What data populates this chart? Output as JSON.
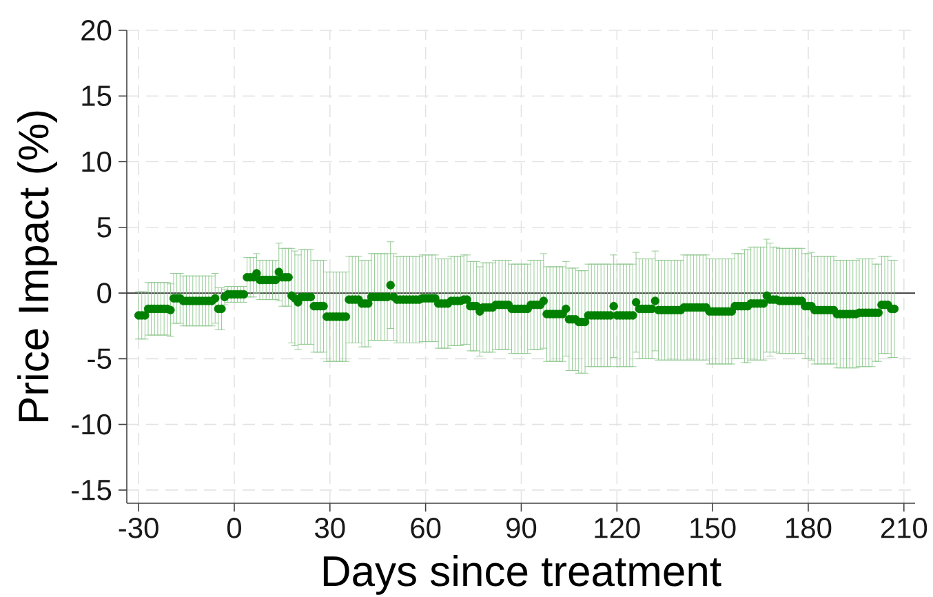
{
  "chart_data": {
    "type": "scatter",
    "xlabel": "Days since treatment",
    "ylabel": "Price Impact (%)",
    "xlim": [
      -33.7,
      213.5
    ],
    "ylim": [
      -16,
      20
    ],
    "xticks": [
      -30,
      0,
      30,
      60,
      90,
      120,
      150,
      180,
      210
    ],
    "yticks": [
      -15,
      -10,
      -5,
      0,
      5,
      10,
      15,
      20
    ],
    "grid": true,
    "marker": "circle",
    "ref_lines": [
      {
        "axis": "y",
        "value": 0,
        "color": "#333333"
      }
    ],
    "x": [
      -30,
      -29,
      -28,
      -27,
      -26,
      -25,
      -24,
      -23,
      -22,
      -21,
      -20,
      -19,
      -18,
      -17,
      -16,
      -15,
      -14,
      -13,
      -12,
      -11,
      -10,
      -9,
      -8,
      -7,
      -6,
      -5,
      -4,
      -3,
      -2,
      -1,
      0,
      1,
      2,
      3,
      4,
      5,
      6,
      7,
      8,
      9,
      10,
      11,
      12,
      13,
      14,
      15,
      16,
      17,
      18,
      19,
      20,
      21,
      22,
      23,
      24,
      25,
      26,
      27,
      28,
      29,
      30,
      31,
      32,
      33,
      34,
      35,
      36,
      37,
      38,
      39,
      40,
      41,
      42,
      43,
      44,
      45,
      46,
      47,
      48,
      49,
      50,
      51,
      52,
      53,
      54,
      55,
      56,
      57,
      58,
      59,
      60,
      61,
      62,
      63,
      64,
      65,
      66,
      67,
      68,
      69,
      70,
      71,
      72,
      73,
      74,
      75,
      76,
      77,
      78,
      79,
      80,
      81,
      82,
      83,
      84,
      85,
      86,
      87,
      88,
      89,
      90,
      91,
      92,
      93,
      94,
      95,
      96,
      97,
      98,
      99,
      100,
      101,
      102,
      103,
      104,
      105,
      106,
      107,
      108,
      109,
      110,
      111,
      112,
      113,
      114,
      115,
      116,
      117,
      118,
      119,
      120,
      121,
      122,
      123,
      124,
      125,
      126,
      127,
      128,
      129,
      130,
      131,
      132,
      133,
      134,
      135,
      136,
      137,
      138,
      139,
      140,
      141,
      142,
      143,
      144,
      145,
      146,
      147,
      148,
      149,
      150,
      151,
      152,
      153,
      154,
      155,
      156,
      157,
      158,
      159,
      160,
      161,
      162,
      163,
      164,
      165,
      166,
      167,
      168,
      169,
      170,
      171,
      172,
      173,
      174,
      175,
      176,
      177,
      178,
      179,
      180,
      181,
      182,
      183,
      184,
      185,
      186,
      187,
      188,
      189,
      190,
      191,
      192,
      193,
      194,
      195,
      196,
      197,
      198,
      199,
      200,
      201,
      202,
      203,
      204,
      205,
      206,
      207
    ],
    "series": [
      {
        "color": "#008000",
        "values": [
          -1.7,
          -1.7,
          -1.7,
          -1.2,
          -1.2,
          -1.2,
          -1.2,
          -1.2,
          -1.2,
          -1.2,
          -1.3,
          -0.4,
          -0.4,
          -0.4,
          -0.6,
          -0.6,
          -0.6,
          -0.6,
          -0.6,
          -0.6,
          -0.6,
          -0.6,
          -0.6,
          -0.6,
          -0.4,
          -1.2,
          -1.2,
          -0.3,
          -0.1,
          -0.1,
          -0.1,
          -0.1,
          -0.1,
          -0.1,
          1.2,
          1.2,
          1.2,
          1.5,
          1.0,
          1.0,
          1.0,
          1.0,
          1.0,
          1.0,
          1.6,
          1.2,
          1.2,
          1.2,
          -0.2,
          -0.4,
          -0.7,
          -0.3,
          -0.3,
          -0.3,
          -0.3,
          -1.0,
          -1.0,
          -1.0,
          -1.0,
          -1.8,
          -1.8,
          -1.8,
          -1.8,
          -1.8,
          -1.8,
          -1.8,
          -0.5,
          -0.5,
          -0.5,
          -0.5,
          -0.8,
          -0.8,
          -0.8,
          -0.3,
          -0.3,
          -0.3,
          -0.3,
          -0.3,
          -0.3,
          0.6,
          -0.3,
          -0.5,
          -0.5,
          -0.5,
          -0.5,
          -0.5,
          -0.5,
          -0.5,
          -0.5,
          -0.4,
          -0.4,
          -0.4,
          -0.4,
          -0.4,
          -0.8,
          -0.8,
          -0.8,
          -0.8,
          -0.6,
          -0.6,
          -0.6,
          -0.6,
          -0.5,
          -0.5,
          -1.0,
          -1.0,
          -1.0,
          -1.4,
          -1.1,
          -1.1,
          -1.1,
          -1.1,
          -0.9,
          -0.9,
          -0.9,
          -0.9,
          -0.9,
          -1.2,
          -1.2,
          -1.2,
          -1.2,
          -1.2,
          -1.2,
          -0.9,
          -0.9,
          -0.9,
          -0.9,
          -0.6,
          -1.6,
          -1.6,
          -1.6,
          -1.6,
          -1.6,
          -1.6,
          -1.2,
          -2.0,
          -2.0,
          -2.0,
          -2.2,
          -2.2,
          -2.2,
          -1.7,
          -1.7,
          -1.7,
          -1.7,
          -1.7,
          -1.7,
          -1.7,
          -1.7,
          -1.0,
          -1.7,
          -1.7,
          -1.7,
          -1.7,
          -1.7,
          -1.7,
          -0.7,
          -1.2,
          -1.2,
          -1.2,
          -1.2,
          -1.2,
          -0.6,
          -1.3,
          -1.3,
          -1.3,
          -1.3,
          -1.3,
          -1.3,
          -1.3,
          -1.3,
          -1.1,
          -1.1,
          -1.1,
          -1.1,
          -1.1,
          -1.1,
          -1.1,
          -1.1,
          -1.4,
          -1.4,
          -1.4,
          -1.4,
          -1.4,
          -1.4,
          -1.4,
          -1.4,
          -1.0,
          -1.0,
          -1.0,
          -1.0,
          -1.0,
          -0.8,
          -0.8,
          -0.8,
          -0.8,
          -0.8,
          -0.2,
          -0.5,
          -0.5,
          -0.5,
          -0.6,
          -0.6,
          -0.6,
          -0.6,
          -0.6,
          -0.6,
          -0.6,
          -0.6,
          -1.0,
          -1.0,
          -1.0,
          -1.3,
          -1.3,
          -1.3,
          -1.3,
          -1.3,
          -1.3,
          -1.3,
          -1.6,
          -1.6,
          -1.6,
          -1.6,
          -1.6,
          -1.6,
          -1.6,
          -1.5,
          -1.5,
          -1.5,
          -1.5,
          -1.5,
          -1.5,
          -1.5,
          -0.9,
          -0.9,
          -0.9,
          -1.2,
          -1.2
        ],
        "errors": [
          1.8,
          1.8,
          1.8,
          2.0,
          2.0,
          2.0,
          2.0,
          2.0,
          2.0,
          2.0,
          2.0,
          1.9,
          1.9,
          1.9,
          1.9,
          1.9,
          1.9,
          1.9,
          1.9,
          1.9,
          1.9,
          1.9,
          1.9,
          1.9,
          1.9,
          1.6,
          1.6,
          0.6,
          0.6,
          0.6,
          0.6,
          0.6,
          0.6,
          0.6,
          1.5,
          1.5,
          1.5,
          1.5,
          1.5,
          1.5,
          1.5,
          1.5,
          1.5,
          1.5,
          2.2,
          2.2,
          2.2,
          2.2,
          3.6,
          3.6,
          3.6,
          3.6,
          3.6,
          3.6,
          3.6,
          3.5,
          3.5,
          3.5,
          3.5,
          3.4,
          3.4,
          3.4,
          3.4,
          3.4,
          3.4,
          3.4,
          3.3,
          3.3,
          3.3,
          3.3,
          3.3,
          3.3,
          3.3,
          3.3,
          3.3,
          3.3,
          3.3,
          3.3,
          3.3,
          3.3,
          3.3,
          3.3,
          3.3,
          3.3,
          3.3,
          3.3,
          3.3,
          3.3,
          3.3,
          3.3,
          3.3,
          3.3,
          3.3,
          3.3,
          3.4,
          3.4,
          3.4,
          3.4,
          3.4,
          3.4,
          3.4,
          3.4,
          3.4,
          3.4,
          3.4,
          3.4,
          3.4,
          3.4,
          3.4,
          3.4,
          3.4,
          3.4,
          3.4,
          3.4,
          3.4,
          3.4,
          3.4,
          3.4,
          3.4,
          3.4,
          3.4,
          3.4,
          3.4,
          3.4,
          3.4,
          3.4,
          3.4,
          3.6,
          3.6,
          3.6,
          3.6,
          3.6,
          3.6,
          3.6,
          3.6,
          3.9,
          3.9,
          3.9,
          3.9,
          3.9,
          3.9,
          3.9,
          3.9,
          3.9,
          3.9,
          3.9,
          3.9,
          3.9,
          3.9,
          3.9,
          3.9,
          3.9,
          3.9,
          3.9,
          3.9,
          3.9,
          3.8,
          3.8,
          3.8,
          3.8,
          3.8,
          3.8,
          3.8,
          3.8,
          3.8,
          3.8,
          3.8,
          3.8,
          3.8,
          3.8,
          3.8,
          4.0,
          4.0,
          4.0,
          4.0,
          4.0,
          4.0,
          4.0,
          4.0,
          4.0,
          4.0,
          4.0,
          4.0,
          4.0,
          4.0,
          4.0,
          4.0,
          4.0,
          4.0,
          4.0,
          4.3,
          4.3,
          4.3,
          4.3,
          4.3,
          4.3,
          4.3,
          4.3,
          4.3,
          4.0,
          4.0,
          4.0,
          4.0,
          4.0,
          4.0,
          4.0,
          4.0,
          4.0,
          4.0,
          4.0,
          4.0,
          4.1,
          4.1,
          4.1,
          4.1,
          4.1,
          4.1,
          4.1,
          4.1,
          4.1,
          4.1,
          4.1,
          4.1,
          4.1,
          4.1,
          4.1,
          4.1,
          4.1,
          4.1,
          4.1,
          4.1,
          3.7,
          3.7,
          3.7,
          3.7,
          3.7,
          3.7,
          3.7
        ]
      }
    ]
  }
}
